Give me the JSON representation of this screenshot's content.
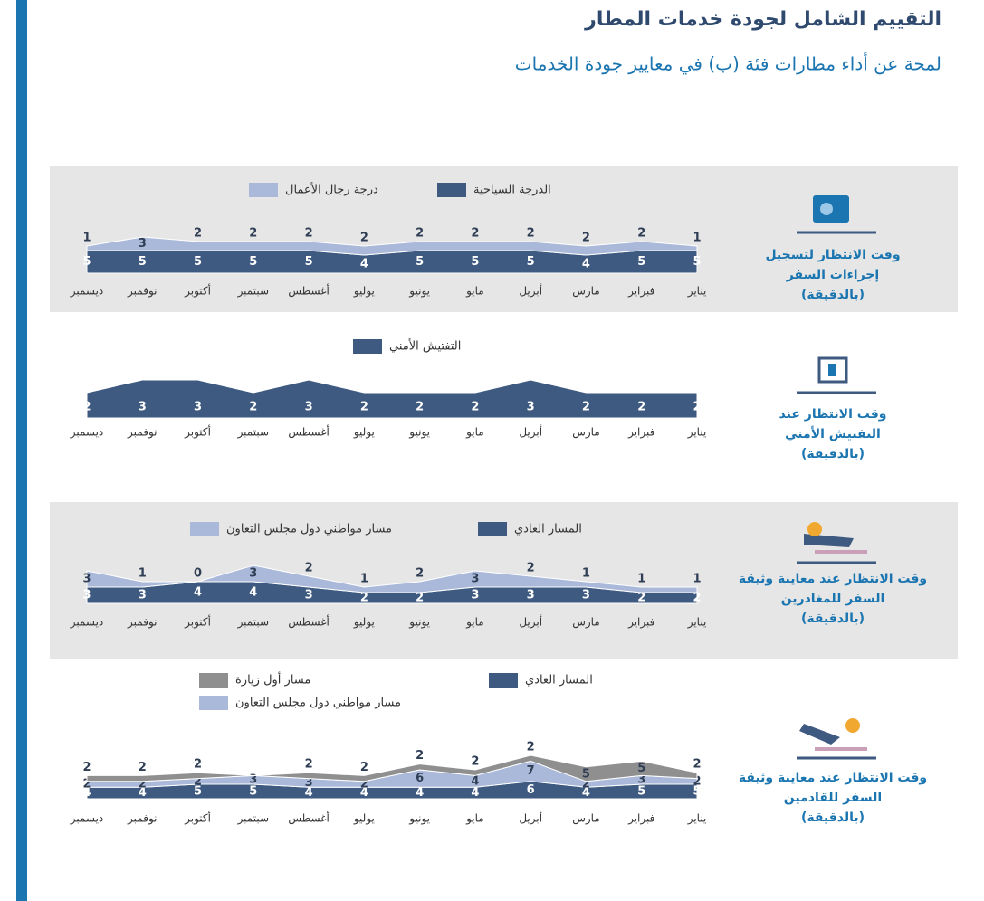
{
  "header": {
    "title": "التقييم الشامل لجودة خدمات المطار",
    "subtitle": "لمحة عن أداء مطارات فئة (ب) في معايير جودة الخدمات"
  },
  "chart_data": [
    {
      "type": "area",
      "title_lines": [
        "وقت الانتظار لتسجيل",
        "إجراءات السفر",
        "(بالدقيقة)"
      ],
      "categories": [
        "يناير",
        "فبراير",
        "مارس",
        "أبريل",
        "مايو",
        "يونيو",
        "يوليو",
        "أغسطس",
        "سبتمبر",
        "أكتوبر",
        "نوفمبر",
        "ديسمبر"
      ],
      "series": [
        {
          "name": "الدرجة السياحية",
          "color": "#3e5a80",
          "values": [
            5,
            5,
            4,
            5,
            5,
            5,
            4,
            5,
            5,
            5,
            5,
            5
          ]
        },
        {
          "name": "درجة رجال الأعمال",
          "color": "#aab9d9",
          "values": [
            1,
            2,
            2,
            2,
            2,
            2,
            2,
            2,
            2,
            2,
            3,
            1
          ]
        }
      ]
    },
    {
      "type": "area",
      "title_lines": [
        "وقت الانتظار عند",
        "التفتيش الأمني",
        "(بالدقيقة)"
      ],
      "categories": [
        "يناير",
        "فبراير",
        "مارس",
        "أبريل",
        "مايو",
        "يونيو",
        "يوليو",
        "أغسطس",
        "سبتمبر",
        "أكتوبر",
        "نوفمبر",
        "ديسمبر"
      ],
      "series": [
        {
          "name": "التفتيش الأمني",
          "color": "#3e5a80",
          "values": [
            2,
            2,
            2,
            3,
            2,
            2,
            2,
            3,
            2,
            3,
            3,
            2
          ]
        }
      ]
    },
    {
      "type": "area",
      "title_lines": [
        "وقت الانتظار عند معاينة وثيقة",
        "السفر للمغادرين",
        "(بالدقيقة)"
      ],
      "categories": [
        "يناير",
        "فبراير",
        "مارس",
        "أبريل",
        "مايو",
        "يونيو",
        "يوليو",
        "أغسطس",
        "سبتمبر",
        "أكتوبر",
        "نوفمبر",
        "ديسمبر"
      ],
      "series": [
        {
          "name": "المسار العادي",
          "color": "#3e5a80",
          "values": [
            2,
            2,
            3,
            3,
            3,
            2,
            2,
            3,
            4,
            4,
            3,
            3
          ]
        },
        {
          "name": "مسار مواطني دول مجلس التعاون",
          "color": "#aab9d9",
          "values": [
            1,
            1,
            1,
            2,
            3,
            2,
            1,
            2,
            3,
            0,
            1,
            3
          ]
        }
      ]
    },
    {
      "type": "area",
      "title_lines": [
        "وقت الانتظار عند معاينة وثيقة",
        "السفر للقادمين",
        "(بالدقيقة)"
      ],
      "categories": [
        "يناير",
        "فبراير",
        "مارس",
        "أبريل",
        "مايو",
        "يونيو",
        "يوليو",
        "أغسطس",
        "سبتمبر",
        "أكتوبر",
        "نوفمبر",
        "ديسمبر"
      ],
      "series": [
        {
          "name": "المسار العادي",
          "color": "#3e5a80",
          "values": [
            5,
            5,
            4,
            6,
            4,
            4,
            4,
            4,
            5,
            5,
            4,
            4
          ]
        },
        {
          "name": "مسار مواطني دول مجلس التعاون",
          "color": "#aab9d9",
          "values": [
            2,
            3,
            2,
            7,
            4,
            6,
            2,
            3,
            3,
            2,
            2,
            2
          ]
        },
        {
          "name": "مسار أول زيارة",
          "color": "#8f8f8f",
          "values": [
            2,
            5,
            5,
            2,
            2,
            2,
            2,
            2,
            null,
            2,
            2,
            2
          ]
        }
      ]
    }
  ]
}
